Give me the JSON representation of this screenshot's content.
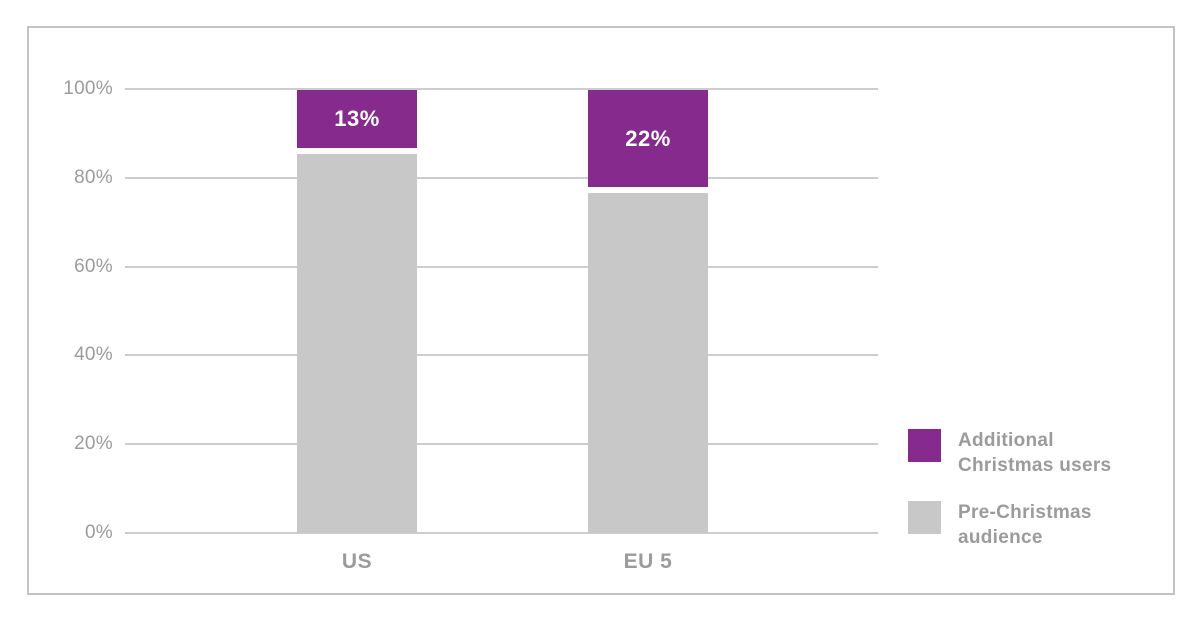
{
  "chart_data": {
    "type": "bar",
    "subtype": "stacked-percentage-column",
    "title": "",
    "categories": [
      "US",
      "EU 5"
    ],
    "series": [
      {
        "name": "Additional Christmas users",
        "color": "#862b8d",
        "values": [
          13,
          22
        ],
        "labels": [
          "13%",
          "22%"
        ],
        "position": "top"
      },
      {
        "name": "Pre-Christmas audience",
        "color": "#c8c8c8",
        "values": [
          87,
          78
        ],
        "position": "bottom"
      }
    ],
    "ytick_labels": [
      "100%",
      "80%",
      "60%",
      "40%",
      "20%",
      "0%"
    ],
    "ytick_values": [
      100,
      80,
      60,
      40,
      20,
      0
    ],
    "ylim": [
      0,
      100
    ],
    "grid": true,
    "gridline_color": "#cdcdcd",
    "legend_position": "right"
  },
  "legend": {
    "entries": [
      {
        "label": "Additional\nChristmas users",
        "color": "#862b8d"
      },
      {
        "label": "Pre-Christmas\naudience",
        "color": "#c8c8c8"
      }
    ]
  },
  "colors": {
    "frame_border": "#c3c3c3",
    "axis_text": "#9b9b9b",
    "bar_value_text": "#ffffff",
    "background": "#ffffff"
  }
}
